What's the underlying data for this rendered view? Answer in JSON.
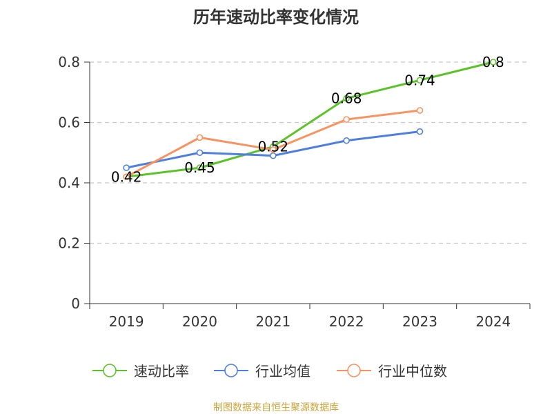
{
  "chart_data": {
    "type": "line",
    "title": "历年速动比率变化情况",
    "categories": [
      "2019",
      "2020",
      "2021",
      "2022",
      "2023",
      "2024"
    ],
    "ylim": [
      0,
      0.8
    ],
    "yticks": [
      0,
      0.2,
      0.4,
      0.6,
      0.8
    ],
    "ytick_labels": [
      "0",
      "0.2",
      "0.4",
      "0.6",
      "0.8"
    ],
    "grid": true,
    "legend_position": "bottom",
    "series": [
      {
        "name": "速动比率",
        "color": "#5cc22a",
        "values": [
          0.42,
          0.45,
          0.52,
          0.68,
          0.74,
          0.8
        ],
        "data_labels": [
          "0.42",
          "0.45",
          "0.52",
          "0.68",
          "0.74",
          "0.8"
        ]
      },
      {
        "name": "行业均值",
        "color": "#4e7fdd",
        "values": [
          0.45,
          0.5,
          0.49,
          0.54,
          0.57,
          null
        ]
      },
      {
        "name": "行业中位数",
        "color": "#f79361",
        "values": [
          0.42,
          0.55,
          0.51,
          0.61,
          0.64,
          null
        ]
      }
    ]
  },
  "source": {
    "text": "制图数据来自恒生聚源数据库",
    "color": "#c8a43a"
  }
}
